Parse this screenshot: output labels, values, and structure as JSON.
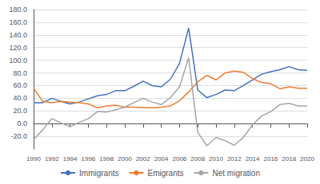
{
  "chart_data": {
    "type": "line",
    "x": [
      1990,
      1991,
      1992,
      1993,
      1994,
      1995,
      1996,
      1997,
      1998,
      1999,
      2000,
      2001,
      2002,
      2003,
      2004,
      2005,
      2006,
      2007,
      2008,
      2009,
      2010,
      2011,
      2012,
      2013,
      2014,
      2015,
      2016,
      2017,
      2018,
      2019,
      2020
    ],
    "series": [
      {
        "name": "Immigrants",
        "color": "#4472C4",
        "values": [
          33,
          33,
          40,
          35,
          31,
          34,
          39,
          44,
          46,
          52,
          52,
          59,
          67,
          60,
          58,
          70,
          95,
          151,
          53,
          41,
          46,
          53,
          52,
          60,
          69,
          78,
          82,
          85,
          90,
          85,
          84
        ]
      },
      {
        "name": "Emigrants",
        "color": "#ED7D31",
        "values": [
          56,
          35,
          33,
          35,
          34,
          33,
          31,
          25,
          28,
          29,
          26,
          26,
          25,
          25,
          26,
          28,
          36,
          50,
          66,
          76,
          69,
          80,
          83,
          81,
          71,
          65,
          63,
          55,
          58,
          56,
          56
        ]
      },
      {
        "name": "Net migration",
        "color": "#A5A5A5",
        "values": [
          -25,
          -10,
          8,
          1,
          -5,
          2,
          8,
          19,
          18,
          22,
          26,
          33,
          40,
          34,
          30,
          41,
          58,
          104,
          -14,
          -35,
          -22,
          -27,
          -34,
          -22,
          -2,
          12,
          19,
          30,
          32,
          28,
          28
        ]
      }
    ],
    "xlim": [
      1990,
      2020
    ],
    "xticks": [
      1990,
      1992,
      1994,
      1996,
      1998,
      2000,
      2002,
      2004,
      2006,
      2008,
      2010,
      2012,
      2014,
      2016,
      2018,
      2020
    ],
    "ylim": [
      -40,
      180
    ],
    "yticks": [
      {
        "value": -20,
        "label": "-20.0"
      },
      {
        "value": 0,
        "label": "0.0"
      },
      {
        "value": 20,
        "label": "20.0"
      },
      {
        "value": 40,
        "label": "40.0"
      },
      {
        "value": 60,
        "label": "60.0"
      },
      {
        "value": 80,
        "label": "80.0"
      },
      {
        "value": 100,
        "label": "100.0"
      },
      {
        "value": 120,
        "label": "120.0"
      },
      {
        "value": 140,
        "label": "140.0"
      },
      {
        "value": 160,
        "label": "160.0"
      },
      {
        "value": 180,
        "label": "180.0"
      }
    ],
    "grid": true,
    "legend": "bottom"
  }
}
